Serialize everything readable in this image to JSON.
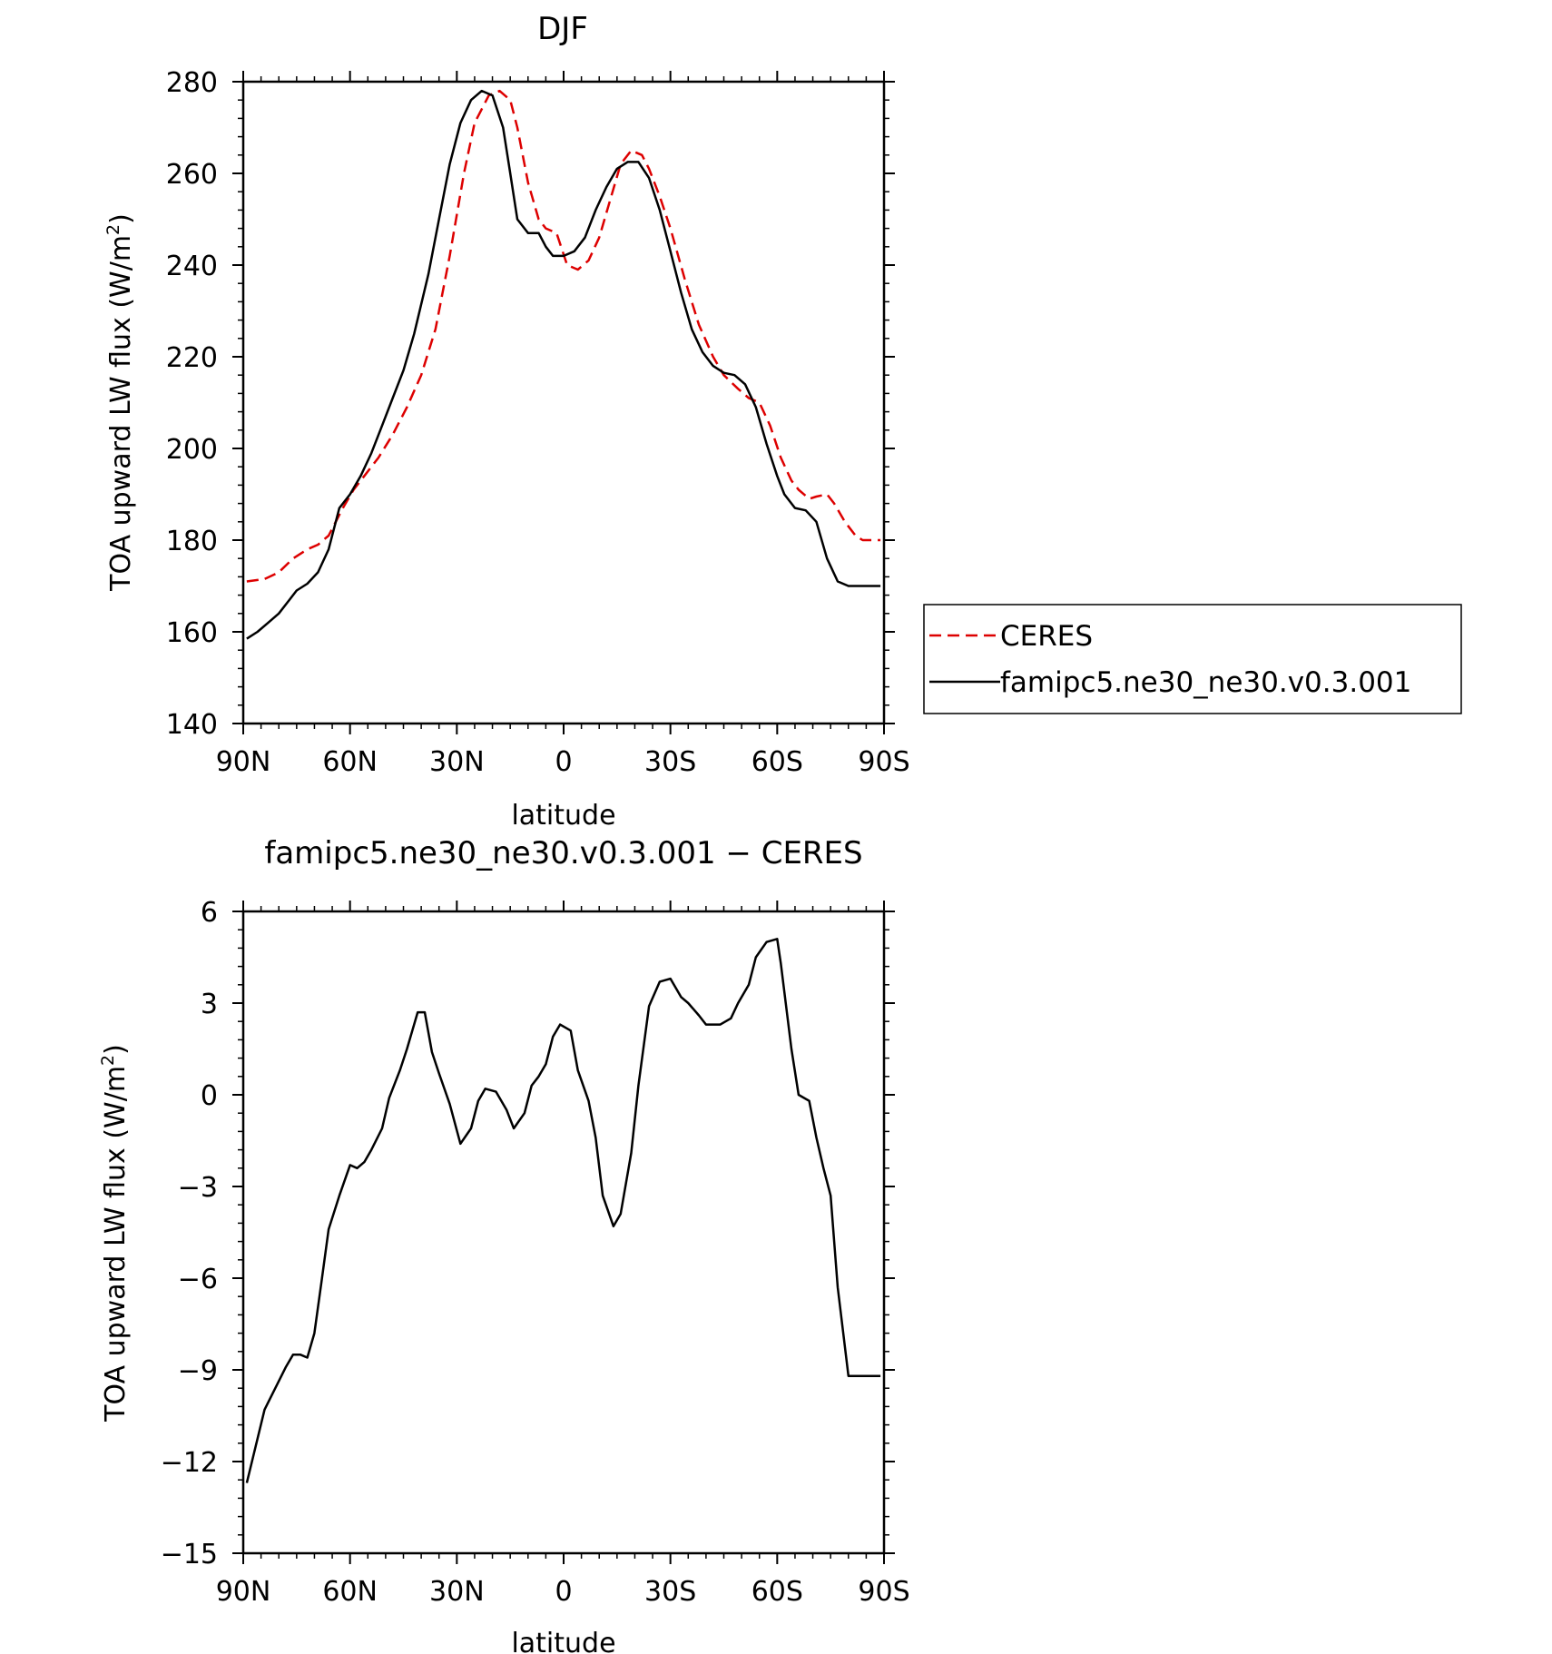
{
  "chart_data": [
    {
      "type": "line",
      "title": "DJF",
      "xlabel": "latitude",
      "ylabel_prefix": "TOA upward LW flux (W/m",
      "ylabel_sup": "2",
      "ylabel_suffix": ")",
      "x_ticks": [
        {
          "value": 90,
          "label": "90N"
        },
        {
          "value": 60,
          "label": "60N"
        },
        {
          "value": 30,
          "label": "30N"
        },
        {
          "value": 0,
          "label": "0"
        },
        {
          "value": -30,
          "label": "30S"
        },
        {
          "value": -60,
          "label": "60S"
        },
        {
          "value": -90,
          "label": "90S"
        }
      ],
      "y_ticks": [
        140,
        160,
        180,
        200,
        220,
        240,
        260,
        280
      ],
      "y_tick_labels": [
        "140",
        "160",
        "180",
        "200",
        "220",
        "240",
        "260",
        "280"
      ],
      "ylim": [
        140,
        280
      ],
      "xlim": [
        90,
        -90
      ],
      "legend_position": "right",
      "series": [
        {
          "name": "CERES",
          "color": "#dd0000",
          "style": "dashed",
          "x": [
            89,
            84,
            80,
            76,
            72,
            69,
            66,
            62,
            59,
            56,
            52,
            48,
            44,
            40,
            36,
            32,
            28,
            25,
            21,
            18,
            15,
            13,
            10,
            7,
            5,
            2,
            -1,
            -4,
            -7,
            -10,
            -13,
            -16,
            -19,
            -22,
            -24,
            -27,
            -30,
            -34,
            -38,
            -42,
            -45,
            -49,
            -52,
            -55,
            -58,
            -61,
            -64,
            -66,
            -69,
            -71,
            -74,
            -76,
            -79,
            -82,
            -84,
            -86,
            -89
          ],
          "y": [
            171,
            171.5,
            173,
            176,
            178,
            179,
            181,
            187,
            191,
            194,
            198,
            203,
            209,
            216,
            226,
            242,
            260,
            271,
            277,
            278,
            276,
            270,
            258,
            250,
            248,
            247,
            240,
            239,
            241,
            246,
            254,
            262,
            265,
            264,
            261,
            255,
            248,
            237,
            227,
            220,
            216,
            213,
            211,
            210,
            205,
            198,
            193,
            191,
            189,
            189.5,
            190,
            188,
            184,
            181,
            180,
            180,
            180
          ]
        },
        {
          "name": "famipc5.ne30_ne30.v0.3.001",
          "color": "#000000",
          "style": "solid",
          "x": [
            89,
            86,
            83,
            80,
            77,
            75,
            72,
            69,
            66,
            63,
            60,
            57,
            54,
            51,
            48,
            45,
            42,
            38,
            35,
            32,
            29,
            26,
            23,
            20,
            17,
            15,
            13,
            10,
            7,
            5,
            3,
            0,
            -3,
            -6,
            -9,
            -12,
            -15,
            -18,
            -21,
            -24,
            -27,
            -30,
            -33,
            -36,
            -39,
            -42,
            -45,
            -48,
            -51,
            -54,
            -57,
            -60,
            -62,
            -65,
            -68,
            -71,
            -74,
            -77,
            -80,
            -83,
            -85,
            -87,
            -89
          ],
          "y": [
            158.5,
            160,
            162,
            164,
            167,
            169,
            170.5,
            173,
            178,
            187,
            190,
            194,
            199,
            205,
            211,
            217,
            225,
            238,
            250,
            262,
            271,
            276,
            278,
            277,
            270,
            260,
            250,
            247,
            247,
            244,
            242,
            242,
            243,
            246,
            252,
            257,
            261,
            262.5,
            262.5,
            259,
            252,
            243,
            234,
            226,
            221,
            218,
            216.5,
            216,
            214,
            209,
            201,
            194,
            190,
            187,
            186.5,
            184,
            176,
            171,
            170,
            170,
            170,
            170,
            170
          ]
        }
      ]
    },
    {
      "type": "line",
      "title": "famipc5.ne30_ne30.v0.3.001 − CERES",
      "xlabel": "latitude",
      "ylabel_prefix": "TOA upward LW flux (W/m",
      "ylabel_sup": "2",
      "ylabel_suffix": ")",
      "x_ticks": [
        {
          "value": 90,
          "label": "90N"
        },
        {
          "value": 60,
          "label": "60N"
        },
        {
          "value": 30,
          "label": "30N"
        },
        {
          "value": 0,
          "label": "0"
        },
        {
          "value": -30,
          "label": "30S"
        },
        {
          "value": -60,
          "label": "60S"
        },
        {
          "value": -90,
          "label": "90S"
        }
      ],
      "y_ticks": [
        -15,
        -12,
        -9,
        -6,
        -3,
        0,
        3,
        6
      ],
      "y_tick_labels": [
        "−15",
        "−12",
        "−9",
        "−6",
        "−3",
        "0",
        "3",
        "6"
      ],
      "ylim": [
        -15,
        6
      ],
      "xlim": [
        90,
        -90
      ],
      "series": [
        {
          "color": "#000000",
          "style": "solid",
          "x": [
            89,
            84,
            81,
            78,
            76,
            74,
            72,
            70,
            68,
            66,
            63,
            60,
            58,
            56,
            54,
            51,
            49,
            46,
            44,
            41,
            39,
            37,
            35,
            32,
            29,
            26,
            24,
            22,
            19,
            16,
            14,
            11,
            9,
            7,
            5,
            3,
            1,
            -2,
            -4,
            -7,
            -9,
            -11,
            -14,
            -16,
            -19,
            -21,
            -24,
            -27,
            -30,
            -33,
            -35,
            -38,
            -40,
            -44,
            -47,
            -49,
            -52,
            -54,
            -57,
            -60,
            -61,
            -64,
            -66,
            -69,
            -71,
            -73,
            -75,
            -77,
            -80,
            -82,
            -85,
            -87,
            -89
          ],
          "y": [
            -12.7,
            -10.3,
            -9.6,
            -8.9,
            -8.5,
            -8.5,
            -8.6,
            -7.8,
            -6.1,
            -4.4,
            -3.3,
            -2.3,
            -2.4,
            -2.2,
            -1.8,
            -1.1,
            -0.1,
            0.8,
            1.5,
            2.7,
            2.7,
            1.4,
            0.7,
            -0.3,
            -1.6,
            -1.1,
            -0.2,
            0.2,
            0.1,
            -0.5,
            -1.1,
            -0.6,
            0.3,
            0.6,
            1.0,
            1.9,
            2.3,
            2.1,
            0.8,
            -0.2,
            -1.4,
            -3.3,
            -4.3,
            -3.9,
            -1.9,
            0.3,
            2.9,
            3.7,
            3.8,
            3.2,
            3.0,
            2.6,
            2.3,
            2.3,
            2.5,
            3.0,
            3.6,
            4.5,
            5.0,
            5.1,
            4.3,
            1.5,
            0,
            -0.2,
            -1.4,
            -2.4,
            -3.3,
            -6.3,
            -9.2,
            -9.2,
            -9.2,
            -9.2,
            -9.2
          ]
        }
      ]
    }
  ]
}
